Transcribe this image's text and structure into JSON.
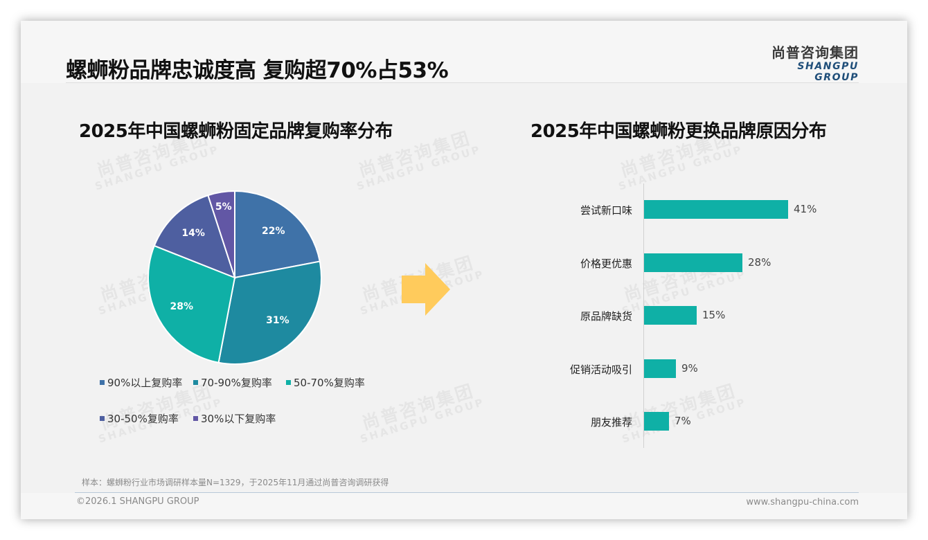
{
  "page": {
    "title": "螺蛳粉品牌忠诚度高 复购超70%占53%",
    "logo": {
      "cn": "尚普咨询集团",
      "en": "SHANGPU GROUP"
    },
    "watermark": {
      "cn": "尚普咨询集团",
      "en": "SHANGPU GROUP"
    },
    "footnote": "样本：螺蛳粉行业市场调研样本量N=1329，于2025年11月通过尚普咨询调研获得",
    "footer": {
      "copyright": "©2026.1 SHANGPU GROUP",
      "website": "www.shangpu-china.com"
    },
    "arrow_color": "#FFCB5C"
  },
  "chart_data": [
    {
      "type": "pie",
      "title": "2025年中国螺蛳粉固定品牌复购率分布",
      "categories": [
        "90%以上复购率",
        "70-90%复购率",
        "50-70%复购率",
        "30-50%复购率",
        "30%以下复购率"
      ],
      "values": [
        22,
        31,
        28,
        14,
        5
      ],
      "labels": [
        "22%",
        "31%",
        "28%",
        "14%",
        "5%"
      ],
      "colors": [
        "#3F72A8",
        "#1E8AA0",
        "#0FB0A6",
        "#4E5FA0",
        "#6257A5"
      ],
      "start_angle": "12 o'clock",
      "direction": "clockwise",
      "legend_position": "bottom"
    },
    {
      "type": "bar",
      "orientation": "horizontal",
      "title": "2025年中国螺蛳粉更换品牌原因分布",
      "categories": [
        "尝试新口味",
        "价格更优惠",
        "原品牌缺货",
        "促销活动吸引",
        "朋友推荐"
      ],
      "values": [
        41,
        28,
        15,
        9,
        7
      ],
      "labels": [
        "41%",
        "28%",
        "15%",
        "9%",
        "7%"
      ],
      "color": "#0FB0A6",
      "xlabel": "",
      "ylabel": "",
      "grid": false,
      "legend": false
    }
  ]
}
